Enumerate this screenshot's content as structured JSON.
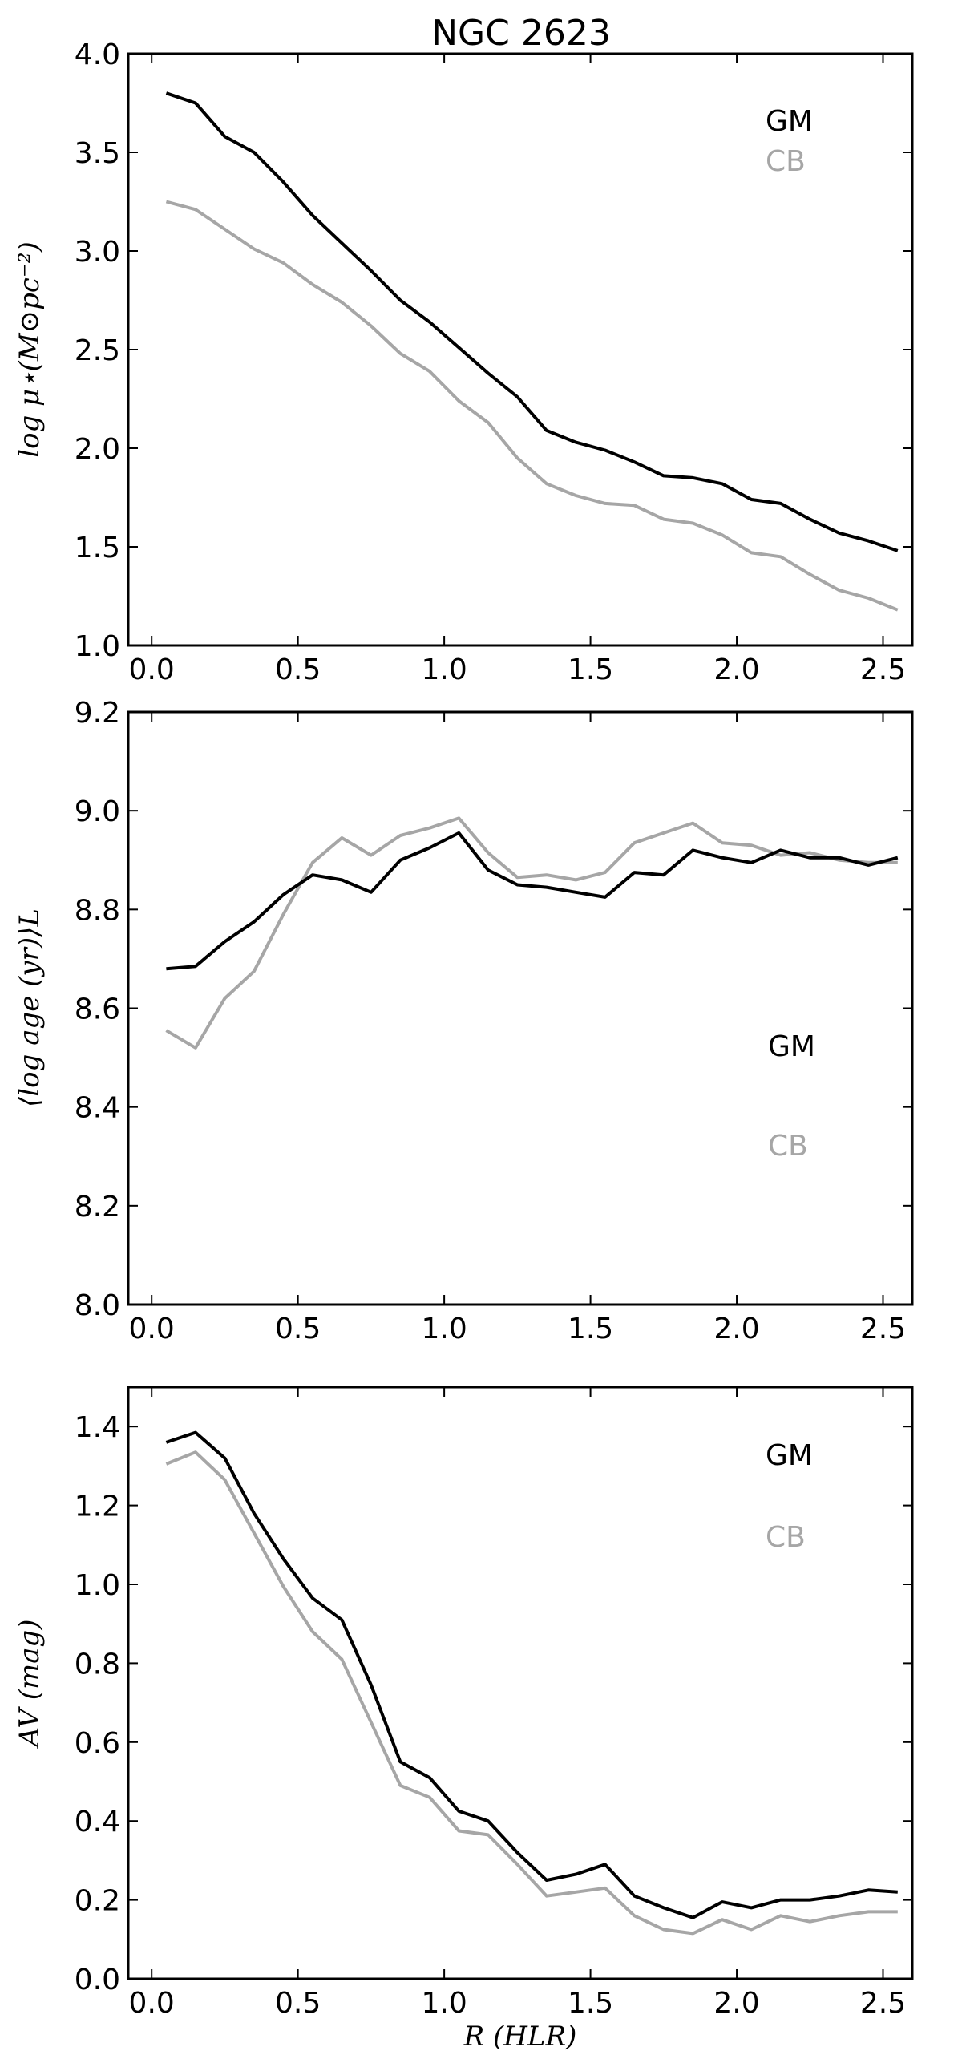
{
  "title": "NGC 2623",
  "colors": {
    "GM": "#000000",
    "CB": "#a6a6a6"
  },
  "chart_data": [
    {
      "type": "line",
      "ylabel": "log μ⋆(M⊙pc⁻²)",
      "xlabel": "",
      "xlim": [
        -0.08,
        2.6
      ],
      "ylim": [
        1.0,
        4.0
      ],
      "xticks": [
        "0.0",
        "0.5",
        "1.0",
        "1.5",
        "2.0",
        "2.5"
      ],
      "yticks": [
        "1.0",
        "1.5",
        "2.0",
        "2.5",
        "3.0",
        "3.5",
        "4.0"
      ],
      "legend_placement": "top-right",
      "x": [
        0.05,
        0.15,
        0.25,
        0.35,
        0.45,
        0.55,
        0.65,
        0.75,
        0.85,
        0.95,
        1.05,
        1.15,
        1.25,
        1.35,
        1.45,
        1.55,
        1.65,
        1.75,
        1.85,
        1.95,
        2.05,
        2.15,
        2.25,
        2.35,
        2.45,
        2.55
      ],
      "series": [
        {
          "name": "GM",
          "values": [
            3.8,
            3.75,
            3.58,
            3.5,
            3.35,
            3.18,
            3.04,
            2.9,
            2.75,
            2.64,
            2.51,
            2.38,
            2.26,
            2.09,
            2.03,
            1.99,
            1.93,
            1.86,
            1.85,
            1.82,
            1.74,
            1.72,
            1.64,
            1.57,
            1.53,
            1.48
          ]
        },
        {
          "name": "CB",
          "values": [
            3.25,
            3.21,
            3.11,
            3.01,
            2.94,
            2.83,
            2.74,
            2.62,
            2.48,
            2.39,
            2.24,
            2.13,
            1.95,
            1.82,
            1.76,
            1.72,
            1.71,
            1.64,
            1.62,
            1.56,
            1.47,
            1.45,
            1.36,
            1.28,
            1.24,
            1.18
          ]
        }
      ]
    },
    {
      "type": "line",
      "ylabel": "⟨log age (yr)⟩L",
      "xlabel": "",
      "xlim": [
        -0.08,
        2.6
      ],
      "ylim": [
        8.0,
        9.2
      ],
      "xticks": [
        "0.0",
        "0.5",
        "1.0",
        "1.5",
        "2.0",
        "2.5"
      ],
      "yticks": [
        "8.0",
        "8.2",
        "8.4",
        "8.6",
        "8.8",
        "9.0",
        "9.2"
      ],
      "legend_placement": "center-right",
      "x": [
        0.05,
        0.15,
        0.25,
        0.35,
        0.45,
        0.55,
        0.65,
        0.75,
        0.85,
        0.95,
        1.05,
        1.15,
        1.25,
        1.35,
        1.45,
        1.55,
        1.65,
        1.75,
        1.85,
        1.95,
        2.05,
        2.15,
        2.25,
        2.35,
        2.45,
        2.55
      ],
      "series": [
        {
          "name": "GM",
          "values": [
            8.68,
            8.685,
            8.735,
            8.775,
            8.83,
            8.87,
            8.86,
            8.835,
            8.9,
            8.925,
            8.955,
            8.88,
            8.85,
            8.845,
            8.835,
            8.825,
            8.875,
            8.87,
            8.92,
            8.905,
            8.895,
            8.92,
            8.905,
            8.905,
            8.89,
            8.905
          ]
        },
        {
          "name": "CB",
          "values": [
            8.555,
            8.52,
            8.62,
            8.675,
            8.79,
            8.895,
            8.945,
            8.91,
            8.95,
            8.965,
            8.985,
            8.915,
            8.865,
            8.87,
            8.86,
            8.875,
            8.935,
            8.955,
            8.975,
            8.935,
            8.93,
            8.91,
            8.915,
            8.9,
            8.895,
            8.895
          ]
        }
      ]
    },
    {
      "type": "line",
      "ylabel": "AV (mag)",
      "xlabel": "R (HLR)",
      "xlim": [
        -0.08,
        2.6
      ],
      "ylim": [
        0.0,
        1.5
      ],
      "xticks": [
        "0.0",
        "0.5",
        "1.0",
        "1.5",
        "2.0",
        "2.5"
      ],
      "yticks": [
        "0.0",
        "0.2",
        "0.4",
        "0.6",
        "0.8",
        "1.0",
        "1.2",
        "1.4"
      ],
      "legend_placement": "top-right",
      "x": [
        0.05,
        0.15,
        0.25,
        0.35,
        0.45,
        0.55,
        0.65,
        0.75,
        0.85,
        0.95,
        1.05,
        1.15,
        1.25,
        1.35,
        1.45,
        1.55,
        1.65,
        1.75,
        1.85,
        1.95,
        2.05,
        2.15,
        2.25,
        2.35,
        2.45,
        2.55
      ],
      "series": [
        {
          "name": "GM",
          "values": [
            1.36,
            1.385,
            1.32,
            1.18,
            1.065,
            0.965,
            0.91,
            0.745,
            0.55,
            0.51,
            0.425,
            0.4,
            0.32,
            0.25,
            0.265,
            0.29,
            0.21,
            0.18,
            0.155,
            0.195,
            0.18,
            0.2,
            0.2,
            0.21,
            0.225,
            0.22
          ]
        },
        {
          "name": "CB",
          "values": [
            1.305,
            1.335,
            1.265,
            1.13,
            0.995,
            0.88,
            0.81,
            0.65,
            0.49,
            0.46,
            0.375,
            0.365,
            0.29,
            0.21,
            0.22,
            0.23,
            0.16,
            0.125,
            0.115,
            0.15,
            0.125,
            0.16,
            0.145,
            0.16,
            0.17,
            0.17
          ]
        }
      ]
    }
  ]
}
